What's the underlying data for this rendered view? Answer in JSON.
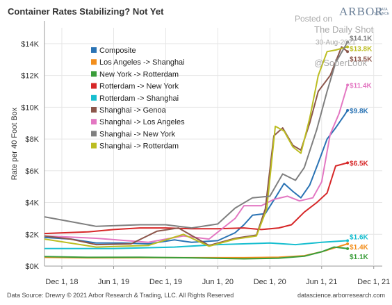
{
  "title": "Container Rates Stabilizing? Not Yet",
  "footer_left": "Data Source: Drewry © 2021 Arbor Research & Trading, LLC. All Rights Reserved",
  "footer_right": "datascience.arborresearch.com",
  "logo": {
    "name": "ARBOR",
    "sub1": "DATA",
    "sub2": "SCIENCE"
  },
  "watermark": {
    "line1": "Posted on",
    "line2": "The Daily Shot",
    "line3": "30-Aug-2021",
    "line4": "@SoberLook"
  },
  "colors": {
    "Composite": "#2a73b4",
    "Los Angeles -> Shanghai": "#f28e1c",
    "New York -> Rotterdam": "#3a9d3a",
    "Rotterdam -> New York": "#d62728",
    "Rotterdam -> Shanghai": "#17becf",
    "Shanghai -> Genoa": "#8c564b",
    "Shanghai -> Los Angeles": "#e377c2",
    "Shanghai -> New York": "#7f7f7f",
    "Shanghai -> Rotterdam": "#bcbd22"
  },
  "chart_data": {
    "type": "line",
    "title": "Container Rates Stabilizing? Not Yet",
    "ylabel": "Rate per 40 Foot Box",
    "xlabel": "",
    "ylim": [
      0,
      15000
    ],
    "yticks": [
      0,
      2000,
      4000,
      6000,
      8000,
      10000,
      12000,
      14000
    ],
    "ytick_labels": [
      "$0K",
      "$2K",
      "$4K",
      "$6K",
      "$8K",
      "$10K",
      "$12K",
      "$14K"
    ],
    "xlim": [
      "2018-10-01",
      "2021-12-31"
    ],
    "xticks": [
      "2018-12-01",
      "2019-06-01",
      "2019-12-01",
      "2020-06-01",
      "2020-12-01",
      "2021-06-01",
      "2021-12-01"
    ],
    "xtick_labels": [
      "Dec 1, 18",
      "Jun 1, 19",
      "Dec 1, 19",
      "Jun 1, 20",
      "Dec 1, 20",
      "Jun 1, 21",
      "Dec 1, 21"
    ],
    "legend_position": "top-left",
    "grid": true,
    "series": [
      {
        "name": "Composite",
        "end_label": "$9.8K",
        "points": [
          [
            "2018-10-01",
            1800
          ],
          [
            "2019-01-01",
            1700
          ],
          [
            "2019-04-01",
            1450
          ],
          [
            "2019-07-01",
            1450
          ],
          [
            "2019-10-01",
            1400
          ],
          [
            "2020-01-01",
            1650
          ],
          [
            "2020-03-01",
            1500
          ],
          [
            "2020-06-01",
            1600
          ],
          [
            "2020-08-01",
            2100
          ],
          [
            "2020-09-01",
            2600
          ],
          [
            "2020-10-01",
            3200
          ],
          [
            "2020-11-15",
            3300
          ],
          [
            "2020-12-20",
            4300
          ],
          [
            "2021-01-20",
            5200
          ],
          [
            "2021-02-20",
            4700
          ],
          [
            "2021-03-20",
            4300
          ],
          [
            "2021-04-20",
            5100
          ],
          [
            "2021-05-20",
            6500
          ],
          [
            "2021-06-20",
            8000
          ],
          [
            "2021-07-20",
            8700
          ],
          [
            "2021-08-20",
            9500
          ],
          [
            "2021-08-31",
            9800
          ]
        ]
      },
      {
        "name": "Los Angeles -> Shanghai",
        "end_label": "$1.4K",
        "points": [
          [
            "2018-10-01",
            550
          ],
          [
            "2019-03-01",
            520
          ],
          [
            "2019-09-01",
            530
          ],
          [
            "2020-03-01",
            530
          ],
          [
            "2020-09-01",
            530
          ],
          [
            "2021-01-01",
            560
          ],
          [
            "2021-04-01",
            650
          ],
          [
            "2021-06-01",
            900
          ],
          [
            "2021-08-31",
            1400
          ]
        ]
      },
      {
        "name": "New York -> Rotterdam",
        "end_label": "$1.1K",
        "points": [
          [
            "2018-10-01",
            600
          ],
          [
            "2019-03-01",
            550
          ],
          [
            "2019-09-01",
            560
          ],
          [
            "2020-03-01",
            520
          ],
          [
            "2020-09-01",
            460
          ],
          [
            "2021-01-01",
            500
          ],
          [
            "2021-04-01",
            620
          ],
          [
            "2021-06-01",
            900
          ],
          [
            "2021-07-15",
            1200
          ],
          [
            "2021-08-31",
            1100
          ]
        ]
      },
      {
        "name": "Rotterdam -> New York",
        "end_label": "$6.5K",
        "points": [
          [
            "2018-10-01",
            2050
          ],
          [
            "2019-03-01",
            2150
          ],
          [
            "2019-06-01",
            2300
          ],
          [
            "2019-09-01",
            2400
          ],
          [
            "2019-12-01",
            2400
          ],
          [
            "2020-03-01",
            2350
          ],
          [
            "2020-06-01",
            2350
          ],
          [
            "2020-09-01",
            2400
          ],
          [
            "2020-11-01",
            2300
          ],
          [
            "2021-01-01",
            2400
          ],
          [
            "2021-02-15",
            2600
          ],
          [
            "2021-04-01",
            3400
          ],
          [
            "2021-05-15",
            4000
          ],
          [
            "2021-06-20",
            4600
          ],
          [
            "2021-07-20",
            6300
          ],
          [
            "2021-08-31",
            6500
          ]
        ]
      },
      {
        "name": "Rotterdam -> Shanghai",
        "end_label": "$1.6K",
        "points": [
          [
            "2018-10-01",
            1100
          ],
          [
            "2019-06-01",
            1100
          ],
          [
            "2020-01-01",
            1200
          ],
          [
            "2020-06-01",
            1350
          ],
          [
            "2020-12-01",
            1450
          ],
          [
            "2021-03-01",
            1350
          ],
          [
            "2021-06-01",
            1500
          ],
          [
            "2021-08-31",
            1600
          ]
        ]
      },
      {
        "name": "Shanghai -> Genoa",
        "end_label": "$13.5K",
        "points": [
          [
            "2018-10-01",
            1900
          ],
          [
            "2019-01-01",
            1700
          ],
          [
            "2019-04-01",
            1350
          ],
          [
            "2019-08-01",
            1400
          ],
          [
            "2019-11-01",
            2200
          ],
          [
            "2020-01-15",
            2400
          ],
          [
            "2020-05-01",
            1300
          ],
          [
            "2020-08-01",
            1750
          ],
          [
            "2020-10-15",
            1950
          ],
          [
            "2020-11-15",
            3600
          ],
          [
            "2020-12-15",
            8200
          ],
          [
            "2021-01-15",
            8700
          ],
          [
            "2021-02-20",
            7600
          ],
          [
            "2021-03-20",
            7300
          ],
          [
            "2021-04-20",
            9000
          ],
          [
            "2021-05-20",
            11000
          ],
          [
            "2021-07-01",
            12000
          ],
          [
            "2021-08-10",
            13800
          ],
          [
            "2021-08-31",
            13500
          ]
        ]
      },
      {
        "name": "Shanghai -> Los Angeles",
        "end_label": "$11.4K",
        "points": [
          [
            "2018-10-01",
            1900
          ],
          [
            "2019-04-01",
            1750
          ],
          [
            "2019-10-01",
            1500
          ],
          [
            "2020-02-01",
            1900
          ],
          [
            "2020-05-01",
            1700
          ],
          [
            "2020-08-01",
            3000
          ],
          [
            "2020-09-01",
            3800
          ],
          [
            "2020-11-01",
            3800
          ],
          [
            "2020-12-15",
            4200
          ],
          [
            "2021-02-01",
            4400
          ],
          [
            "2021-03-15",
            4100
          ],
          [
            "2021-05-01",
            4300
          ],
          [
            "2021-06-01",
            5300
          ],
          [
            "2021-07-01",
            8300
          ],
          [
            "2021-08-01",
            9600
          ],
          [
            "2021-08-31",
            11400
          ]
        ]
      },
      {
        "name": "Shanghai -> New York",
        "end_label": "$14.1K",
        "points": [
          [
            "2018-10-01",
            3100
          ],
          [
            "2019-01-01",
            2800
          ],
          [
            "2019-04-01",
            2500
          ],
          [
            "2019-09-01",
            2600
          ],
          [
            "2019-12-01",
            2600
          ],
          [
            "2020-03-01",
            2400
          ],
          [
            "2020-06-01",
            2650
          ],
          [
            "2020-08-01",
            3650
          ],
          [
            "2020-10-01",
            4300
          ],
          [
            "2020-12-01",
            4400
          ],
          [
            "2021-01-15",
            5800
          ],
          [
            "2021-03-01",
            5400
          ],
          [
            "2021-04-01",
            6200
          ],
          [
            "2021-05-15",
            8600
          ],
          [
            "2021-06-20",
            11000
          ],
          [
            "2021-07-20",
            12800
          ],
          [
            "2021-08-31",
            14100
          ]
        ]
      },
      {
        "name": "Shanghai -> Rotterdam",
        "end_label": "$13.8K",
        "points": [
          [
            "2018-10-01",
            1700
          ],
          [
            "2019-04-01",
            1200
          ],
          [
            "2019-10-01",
            1300
          ],
          [
            "2020-02-01",
            2000
          ],
          [
            "2020-05-01",
            1250
          ],
          [
            "2020-08-01",
            1700
          ],
          [
            "2020-10-15",
            1900
          ],
          [
            "2020-11-20",
            3600
          ],
          [
            "2020-12-20",
            8800
          ],
          [
            "2021-01-20",
            8500
          ],
          [
            "2021-02-20",
            7500
          ],
          [
            "2021-03-20",
            7100
          ],
          [
            "2021-04-20",
            9300
          ],
          [
            "2021-05-20",
            12000
          ],
          [
            "2021-06-20",
            13500
          ],
          [
            "2021-07-20",
            13600
          ],
          [
            "2021-08-31",
            13800
          ]
        ]
      }
    ]
  }
}
